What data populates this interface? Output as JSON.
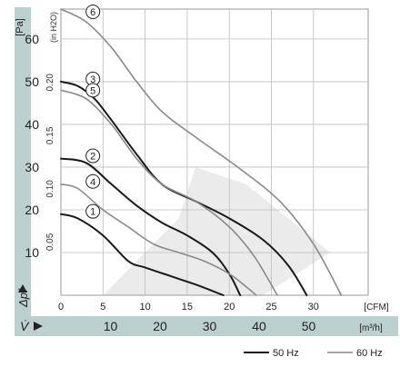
{
  "chart_data": {
    "type": "line",
    "pa_axis": {
      "unit_label": "[Pa]",
      "ticks": [
        10,
        20,
        30,
        40,
        50,
        60
      ],
      "range": [
        0,
        67
      ]
    },
    "inh2o_axis": {
      "unit_label": "(in H2O)",
      "ticks": [
        "0.05",
        "0.10",
        "0.15",
        "0.20"
      ]
    },
    "cfm_axis": {
      "unit_label": "[CFM]",
      "ticks": [
        0,
        5,
        10,
        15,
        20,
        25,
        30
      ],
      "range": [
        0,
        36.5
      ]
    },
    "m3h_axis": {
      "unit_label": "[m³/h]",
      "ticks": [
        10,
        20,
        30,
        40,
        50
      ]
    },
    "dp_symbol": "Δpf",
    "v_symbol": "V̇",
    "legend": {
      "hz50": "50 Hz",
      "hz60": "60 Hz"
    },
    "colors": {
      "hz50": "#1a1a1a",
      "hz60": "#8a8a8a",
      "grid": "#bdbdbd",
      "band": "#bcd0cf",
      "operating_area": "#dedede"
    },
    "series": [
      {
        "name": "1",
        "frequency": "50 Hz",
        "x": [
          0,
          2,
          5,
          8,
          10,
          13,
          16,
          18,
          19.3
        ],
        "y": [
          19,
          18,
          14,
          8,
          6.5,
          4.5,
          2.5,
          1,
          0
        ]
      },
      {
        "name": "2",
        "frequency": "50 Hz",
        "x": [
          0,
          3,
          6,
          9,
          12,
          15,
          18,
          20,
          21.3
        ],
        "y": [
          32,
          31,
          26,
          21,
          17,
          14,
          10,
          5,
          0
        ]
      },
      {
        "name": "3",
        "frequency": "50 Hz",
        "x": [
          0,
          2,
          4,
          6,
          9,
          12,
          16,
          20,
          24,
          27,
          29.2
        ],
        "y": [
          50,
          49,
          46,
          41,
          33,
          26,
          22,
          18,
          13,
          7,
          0
        ]
      },
      {
        "name": "4",
        "frequency": "60 Hz",
        "x": [
          0,
          2,
          5,
          8,
          11,
          14,
          17,
          20,
          22,
          23.2
        ],
        "y": [
          26,
          25,
          20,
          16,
          12,
          10,
          8,
          5,
          2,
          0
        ]
      },
      {
        "name": "5",
        "frequency": "60 Hz",
        "x": [
          0,
          3,
          6,
          9,
          12,
          16,
          20,
          23,
          25.7
        ],
        "y": [
          48,
          46,
          40,
          32,
          26,
          22,
          16,
          9,
          0
        ]
      },
      {
        "name": "6",
        "frequency": "60 Hz",
        "x": [
          0,
          3,
          6,
          9,
          12,
          16,
          21,
          26,
          30,
          33.3
        ],
        "y": [
          67,
          64,
          58,
          50,
          43,
          37,
          30,
          22,
          12,
          0
        ]
      }
    ]
  }
}
